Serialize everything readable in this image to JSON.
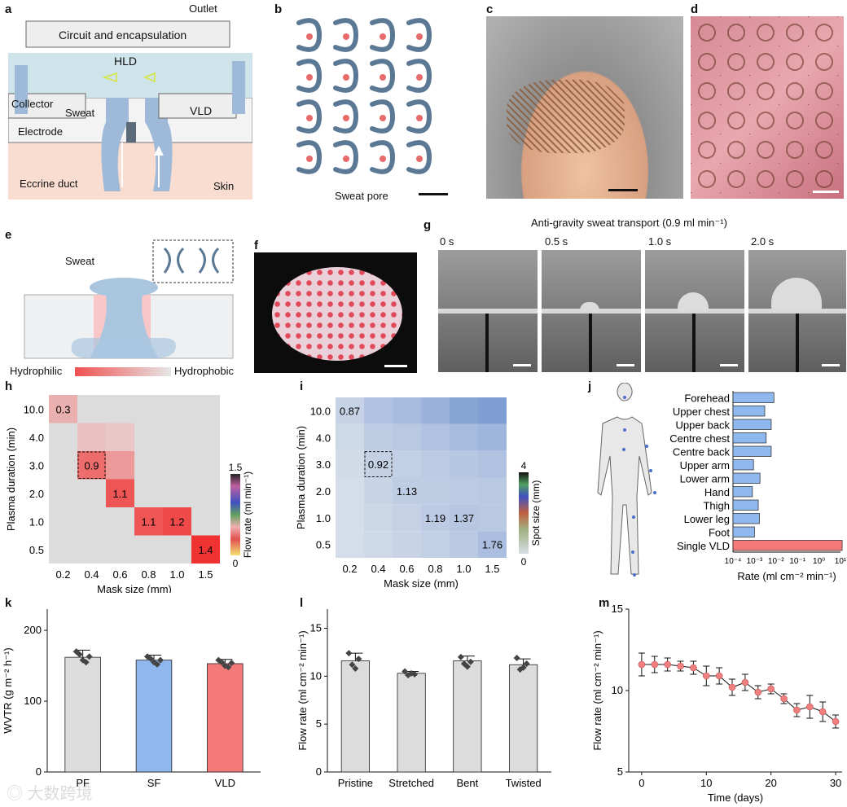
{
  "panels": {
    "a": "a",
    "b": "b",
    "c": "c",
    "d": "d",
    "e": "e",
    "f": "f",
    "g": "g",
    "h": "h",
    "i": "i",
    "j": "j",
    "k": "k",
    "l": "l",
    "m": "m"
  },
  "a": {
    "outlet": "Outlet",
    "circuit": "Circuit and encapsulation",
    "hld": "HLD",
    "collector": "Collector",
    "sweat": "Sweat",
    "vld": "VLD",
    "electrode": "Electrode",
    "eccrine": "Eccrine duct",
    "skin": "Skin"
  },
  "b": {
    "sweat_pore": "Sweat pore"
  },
  "e": {
    "sweat": "Sweat",
    "hydrophilic": "Hydrophilic",
    "hydrophobic": "Hydrophobic"
  },
  "g": {
    "title": "Anti-gravity sweat transport (0.9 ml min⁻¹)",
    "times": [
      "0 s",
      "0.5 s",
      "1.0 s",
      "2.0 s"
    ]
  },
  "colors": {
    "blue_fill": "#8fb8ee",
    "red_fill": "#f47a7a",
    "grey_fill": "#dcdcdc",
    "pore": "#e86b6b",
    "channel": "#5a7590"
  },
  "chart_data": [
    {
      "id": "h",
      "type": "heatmap",
      "xlabel": "Mask size (mm)",
      "ylabel": "Plasma duration (min)",
      "x_categories": [
        "0.2",
        "0.4",
        "0.6",
        "0.8",
        "1.0",
        "1.5"
      ],
      "y_categories": [
        "10.0",
        "4.0",
        "3.0",
        "2.0",
        "1.0",
        "0.5"
      ],
      "cells": [
        {
          "x": "0.2",
          "y": "10.0",
          "value": 0.3,
          "label": "0.3"
        },
        {
          "x": "0.4",
          "y": "4.0",
          "value": 0.15,
          "label": ""
        },
        {
          "x": "0.6",
          "y": "4.0",
          "value": 0.1,
          "label": ""
        },
        {
          "x": "0.4",
          "y": "3.0",
          "value": 0.9,
          "label": "0.9",
          "highlight": true
        },
        {
          "x": "0.6",
          "y": "3.0",
          "value": 0.5,
          "label": ""
        },
        {
          "x": "0.6",
          "y": "2.0",
          "value": 1.1,
          "label": "1.1"
        },
        {
          "x": "0.8",
          "y": "1.0",
          "value": 1.1,
          "label": "1.1"
        },
        {
          "x": "1.0",
          "y": "1.0",
          "value": 1.2,
          "label": "1.2"
        },
        {
          "x": "1.5",
          "y": "0.5",
          "value": 1.4,
          "label": "1.4"
        }
      ],
      "colorbar": {
        "label": "Flow rate (ml min⁻¹)",
        "min": "0",
        "max": "1.5"
      }
    },
    {
      "id": "i",
      "type": "heatmap",
      "xlabel": "Mask size (mm)",
      "ylabel": "Plasma duration (min)",
      "x_categories": [
        "0.2",
        "0.4",
        "0.6",
        "0.8",
        "1.0",
        "1.5"
      ],
      "y_categories": [
        "10.0",
        "4.0",
        "3.0",
        "2.0",
        "1.0",
        "0.5"
      ],
      "grid": [
        [
          0.87,
          1.6,
          1.9,
          2.3,
          2.9,
          3.2
        ],
        [
          0.6,
          1.1,
          1.3,
          1.6,
          1.9,
          2.2
        ],
        [
          0.5,
          0.92,
          1.0,
          1.2,
          1.4,
          1.6
        ],
        [
          0.4,
          0.8,
          1.13,
          1.1,
          1.2,
          1.3
        ],
        [
          0.4,
          0.7,
          0.9,
          1.19,
          1.37,
          1.3
        ],
        [
          0.4,
          0.6,
          0.8,
          1.0,
          1.3,
          1.76
        ]
      ],
      "labels": [
        {
          "x": "0.2",
          "y": "10.0",
          "label": "0.87"
        },
        {
          "x": "0.4",
          "y": "3.0",
          "label": "0.92",
          "highlight": true
        },
        {
          "x": "0.6",
          "y": "2.0",
          "label": "1.13"
        },
        {
          "x": "0.8",
          "y": "1.0",
          "label": "1.19"
        },
        {
          "x": "1.0",
          "y": "1.0",
          "label": "1.37"
        },
        {
          "x": "1.5",
          "y": "0.5",
          "label": "1.76"
        }
      ],
      "colorbar": {
        "label": "Spot size (mm)",
        "min": "0",
        "max": "4"
      }
    },
    {
      "id": "j",
      "type": "bar",
      "orientation": "horizontal",
      "xscale": "log",
      "xlabel": "Rate (ml cm⁻² min⁻¹)",
      "categories": [
        "Forehead",
        "Upper chest",
        "Upper back",
        "Centre chest",
        "Centre back",
        "Upper arm",
        "Lower arm",
        "Hand",
        "Thigh",
        "Lower leg",
        "Foot",
        "Single VLD"
      ],
      "values": [
        0.008,
        0.003,
        0.006,
        0.0035,
        0.006,
        0.0009,
        0.0018,
        0.0008,
        0.0015,
        0.0017,
        0.001,
        12
      ],
      "xlim": [
        0.0001,
        10
      ],
      "ticks": [
        "10⁻⁴",
        "10⁻³",
        "10⁻²",
        "10⁻¹",
        "10⁰",
        "10¹"
      ]
    },
    {
      "id": "k",
      "type": "bar",
      "ylabel": "WVTR (g m⁻² h⁻¹)",
      "categories": [
        "PF",
        "SF",
        "VLD"
      ],
      "values": [
        162,
        158,
        153
      ],
      "errors": [
        10,
        7,
        6
      ],
      "points": [
        [
          170,
          166,
          158,
          155,
          163
        ],
        [
          163,
          160,
          155,
          152,
          158
        ],
        [
          158,
          155,
          150,
          148,
          154
        ]
      ],
      "ylim": [
        0,
        230
      ],
      "yticks": [
        "0",
        "100",
        "200"
      ],
      "colors": [
        "#dcdcdc",
        "#8fb8ee",
        "#f47a7a"
      ]
    },
    {
      "id": "l",
      "type": "bar",
      "ylabel": "Flow rate (ml cm⁻² min⁻¹)",
      "categories": [
        "Pristine",
        "Stretched",
        "Bent",
        "Twisted"
      ],
      "values": [
        11.6,
        10.3,
        11.6,
        11.2
      ],
      "errors": [
        0.8,
        0.2,
        0.5,
        0.6
      ],
      "points": [
        [
          12.4,
          11.2,
          10.8,
          11.8
        ],
        [
          10.5,
          10.1,
          10.3,
          10.2
        ],
        [
          12.0,
          11.3,
          11.0,
          11.5
        ],
        [
          11.9,
          10.7,
          10.9,
          11.3
        ]
      ],
      "ylim": [
        0,
        17
      ],
      "yticks": [
        "0",
        "5",
        "10",
        "15"
      ],
      "colors": [
        "#dcdcdc",
        "#dcdcdc",
        "#dcdcdc",
        "#dcdcdc"
      ]
    },
    {
      "id": "m",
      "type": "line",
      "xlabel": "Time (days)",
      "ylabel": "Flow rate (ml cm⁻² min⁻¹)",
      "x": [
        0,
        2,
        4,
        6,
        8,
        10,
        12,
        14,
        16,
        18,
        20,
        22,
        24,
        26,
        28,
        30
      ],
      "y": [
        11.6,
        11.6,
        11.6,
        11.5,
        11.4,
        10.9,
        10.9,
        10.2,
        10.5,
        9.9,
        10.1,
        9.5,
        8.8,
        9.0,
        8.7,
        8.1
      ],
      "err": [
        0.7,
        0.5,
        0.4,
        0.3,
        0.4,
        0.6,
        0.5,
        0.5,
        0.5,
        0.4,
        0.3,
        0.3,
        0.4,
        0.7,
        0.6,
        0.4
      ],
      "xlim": [
        -2,
        31
      ],
      "ylim": [
        5,
        15
      ],
      "xticks": [
        "0",
        "10",
        "20",
        "30"
      ],
      "yticks": [
        "5",
        "10",
        "15"
      ]
    }
  ]
}
